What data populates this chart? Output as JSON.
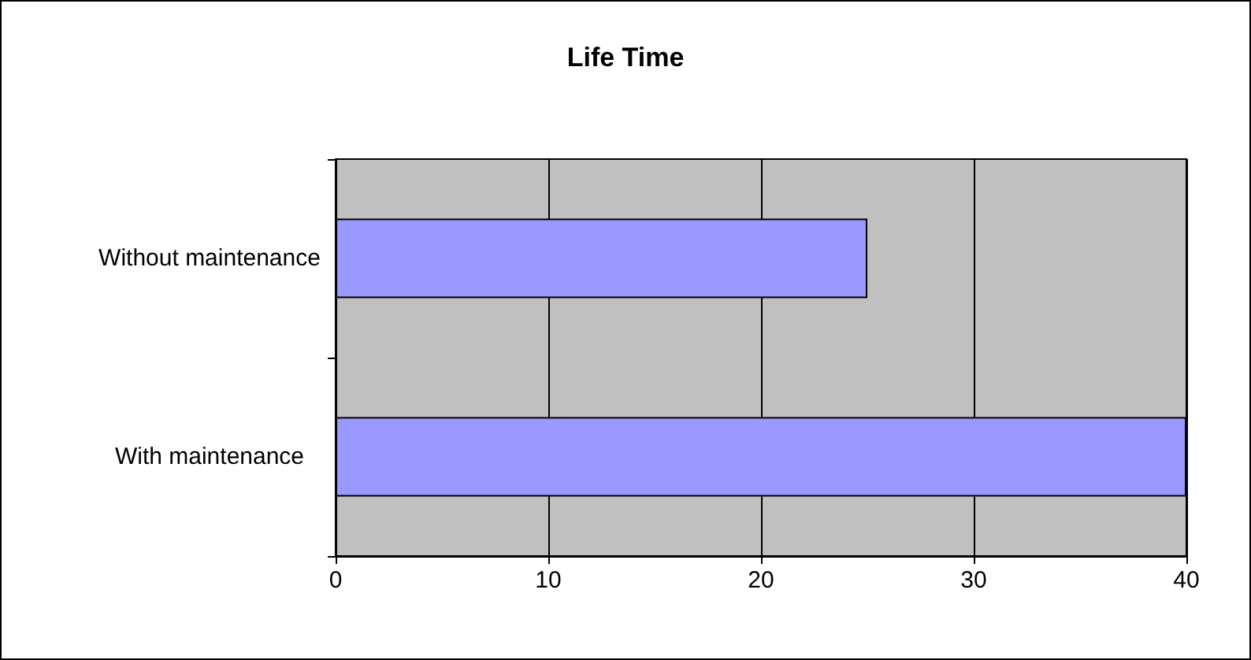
{
  "chart_data": {
    "type": "bar",
    "title": "Life Time",
    "orientation": "horizontal",
    "categories": [
      "Without maintenance",
      "With maintenance"
    ],
    "values": [
      25,
      40
    ],
    "color": "#9999ff",
    "xlim": [
      0,
      40
    ],
    "xticks": [
      0,
      10,
      20,
      30,
      40
    ],
    "grid": "x"
  }
}
